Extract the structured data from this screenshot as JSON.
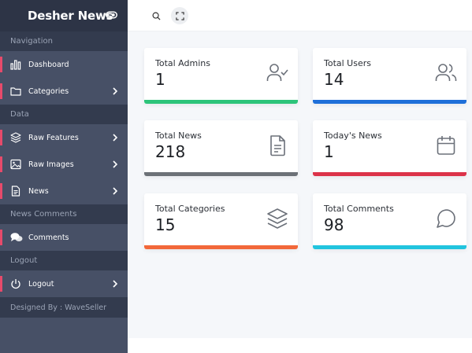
{
  "brand": {
    "name": "Desher News"
  },
  "sidebar": {
    "sections": [
      {
        "title": "Navigation",
        "items": [
          {
            "label": "Dashboard",
            "icon": "bar-chart-icon",
            "has_chevron": false
          },
          {
            "label": "Categories",
            "icon": "folder-icon",
            "has_chevron": true
          }
        ]
      },
      {
        "title": "Data",
        "items": [
          {
            "label": "Raw Features",
            "icon": "layers-icon",
            "has_chevron": true
          },
          {
            "label": "Raw Images",
            "icon": "image-icon",
            "has_chevron": true
          },
          {
            "label": "News",
            "icon": "document-icon",
            "has_chevron": true
          }
        ]
      },
      {
        "title": "News Comments",
        "items": [
          {
            "label": "Comments",
            "icon": "comments-icon",
            "has_chevron": false
          }
        ]
      },
      {
        "title": "Logout",
        "items": [
          {
            "label": "Logout",
            "icon": "power-icon",
            "has_chevron": true
          }
        ]
      }
    ],
    "credit": "Designed By : WaveSeller"
  },
  "topbar": {
    "search_icon": "search-icon",
    "expand_icon": "fullscreen-icon"
  },
  "cards": [
    {
      "label": "Total Admins",
      "value": "1",
      "icon": "user-check-icon",
      "color": "#2dc47a"
    },
    {
      "label": "Total Users",
      "value": "14",
      "icon": "users-icon",
      "color": "#1e6fd9"
    },
    {
      "label": "Total News",
      "value": "218",
      "icon": "file-text-icon",
      "color": "#6c7177"
    },
    {
      "label": "Today's News",
      "value": "1",
      "icon": "calendar-icon",
      "color": "#dc3349"
    },
    {
      "label": "Total Categories",
      "value": "15",
      "icon": "layers-icon",
      "color": "#f2683a"
    },
    {
      "label": "Total Comments",
      "value": "98",
      "icon": "message-circle-icon",
      "color": "#21c4de"
    }
  ],
  "colors": {
    "sidebar_bg": "#475066",
    "sidebar_dark": "#333b4e",
    "brand_bg": "#2d3446",
    "accent": "#e74a6b"
  }
}
